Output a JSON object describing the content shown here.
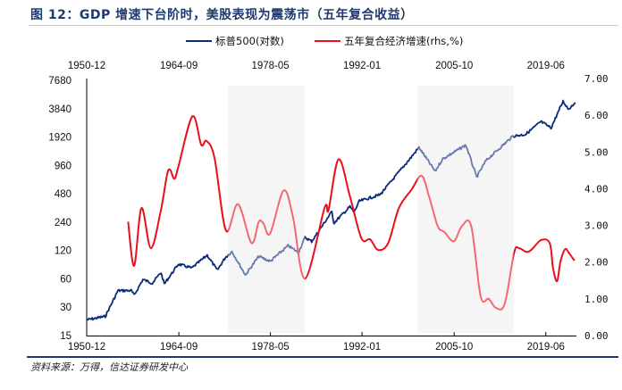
{
  "title": "图 12：GDP 增速下台阶时，美股表现为震荡市（五年复合收益）",
  "source": "资料来源：万得，信达证券研发中心",
  "colors": {
    "sp500": "#0a2a7a",
    "gdp": "#e8101c",
    "shade": "#f3f3f3",
    "rule": "#1f3a6e"
  },
  "chart_data": {
    "type": "line",
    "title": "",
    "legend": {
      "placement": "top",
      "entries": [
        "标普500(对数)",
        "五年复合经济增速(rhs,%)"
      ]
    },
    "x_tick_labels": [
      "1950-12",
      "1964-09",
      "1978-05",
      "1992-01",
      "2005-10",
      "2019-06"
    ],
    "x_tick_values": [
      1950.92,
      1964.67,
      1978.33,
      1992.0,
      2005.75,
      2019.42
    ],
    "x_range": [
      1950.92,
      2023.8
    ],
    "y_left": {
      "scale": "log2",
      "range": [
        15,
        7680
      ],
      "tick_labels": [
        "7680",
        "3840",
        "1920",
        "960",
        "480",
        "240",
        "120",
        "60",
        "30",
        "15"
      ]
    },
    "y_right": {
      "scale": "linear",
      "range": [
        0,
        7
      ],
      "tick_labels": [
        "7.00",
        "6.00",
        "5.00",
        "4.00",
        "3.00",
        "2.00",
        "1.00",
        "0.00"
      ]
    },
    "grid": false,
    "shaded_periods": [
      [
        1972.0,
        1983.5
      ],
      [
        2000.3,
        2014.6
      ]
    ],
    "series": [
      {
        "name": "标普500(对数)",
        "axis": "left",
        "x": [
          1951.0,
          1953.7,
          1955.6,
          1957.6,
          1958.0,
          1959.3,
          1960.7,
          1962.0,
          1962.5,
          1964.6,
          1966.6,
          1968.9,
          1970.4,
          1971.6,
          1972.6,
          1974.6,
          1976.6,
          1978.3,
          1981.0,
          1982.5,
          1983.5,
          1984.5,
          1987.5,
          1987.8,
          1990.2,
          1990.8,
          1991.6,
          1994.7,
          1996.5,
          1999.2,
          2000.5,
          2002.9,
          2004.0,
          2007.5,
          2009.1,
          2010.5,
          2014.5,
          2016.4,
          2018.7,
          2020.2,
          2022.0,
          2022.8,
          2023.8
        ],
        "y": [
          22,
          24,
          45,
          45,
          40,
          59,
          54,
          70,
          53,
          86,
          78,
          107,
          74,
          101,
          117,
          66,
          104,
          92,
          135,
          114,
          165,
          150,
          310,
          235,
          350,
          305,
          400,
          470,
          670,
          1140,
          1490,
          830,
          1120,
          1580,
          720,
          1080,
          1960,
          2050,
          2800,
          2400,
          4600,
          3800,
          4470
        ]
      },
      {
        "name": "五年复合经济增速(rhs,%)",
        "axis": "right",
        "x": [
          1957.1,
          1958.0,
          1959.1,
          1960.5,
          1962.0,
          1963.1,
          1964.0,
          1964.6,
          1966.7,
          1968.0,
          1968.8,
          1970.0,
          1971.7,
          1973.5,
          1975.5,
          1976.6,
          1977.3,
          1978.3,
          1980.3,
          1981.7,
          1983.5,
          1986.4,
          1987.0,
          1988.5,
          1990.2,
          1991.9,
          1993.2,
          1994.4,
          1995.9,
          1997.5,
          1999.4,
          2000.9,
          2002.0,
          2003.3,
          2004.3,
          2005.7,
          2006.9,
          2008.3,
          2009.7,
          2010.9,
          2012.0,
          2013.3,
          2014.7,
          2015.4,
          2016.5,
          2017.3,
          2018.7,
          2020.0,
          2020.5,
          2021.1,
          2021.6,
          2022.3,
          2022.9,
          2023.7
        ],
        "y": [
          3.1,
          1.9,
          3.47,
          2.38,
          3.42,
          4.5,
          4.27,
          4.6,
          5.97,
          5.2,
          5.3,
          4.83,
          2.86,
          3.58,
          2.52,
          3.1,
          3.05,
          2.78,
          3.95,
          3.23,
          1.55,
          3.47,
          3.42,
          4.8,
          3.79,
          2.65,
          2.62,
          2.33,
          2.52,
          3.47,
          3.98,
          4.35,
          3.79,
          2.98,
          2.82,
          2.57,
          2.98,
          2.98,
          1.07,
          1.0,
          0.75,
          0.87,
          2.26,
          2.38,
          2.28,
          2.34,
          2.6,
          2.52,
          1.84,
          1.48,
          2.01,
          2.35,
          2.24,
          2.04
        ]
      }
    ]
  }
}
